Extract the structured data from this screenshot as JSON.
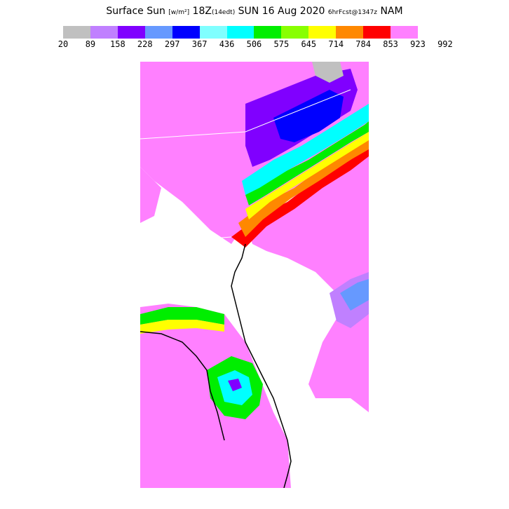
{
  "header": {
    "title_main": "Surface Sun",
    "title_units": "[w/m²]",
    "title_time": "18Z",
    "title_local": "(14edt)",
    "title_date": "SUN 16 Aug 2020",
    "title_fcst": "6hrFcst@1347z",
    "title_model": "NAM"
  },
  "legend": {
    "colors": [
      "#c0c0c0",
      "#c080ff",
      "#8000ff",
      "#6699ff",
      "#0000ff",
      "#80ffff",
      "#00ffff",
      "#00ee00",
      "#88ff00",
      "#ffff00",
      "#ff8800",
      "#ff0000",
      "#ff80ff"
    ],
    "ticks": [
      "20",
      "89",
      "158",
      "228",
      "297",
      "367",
      "436",
      "506",
      "575",
      "645",
      "714",
      "784",
      "853",
      "923",
      "992"
    ]
  }
}
